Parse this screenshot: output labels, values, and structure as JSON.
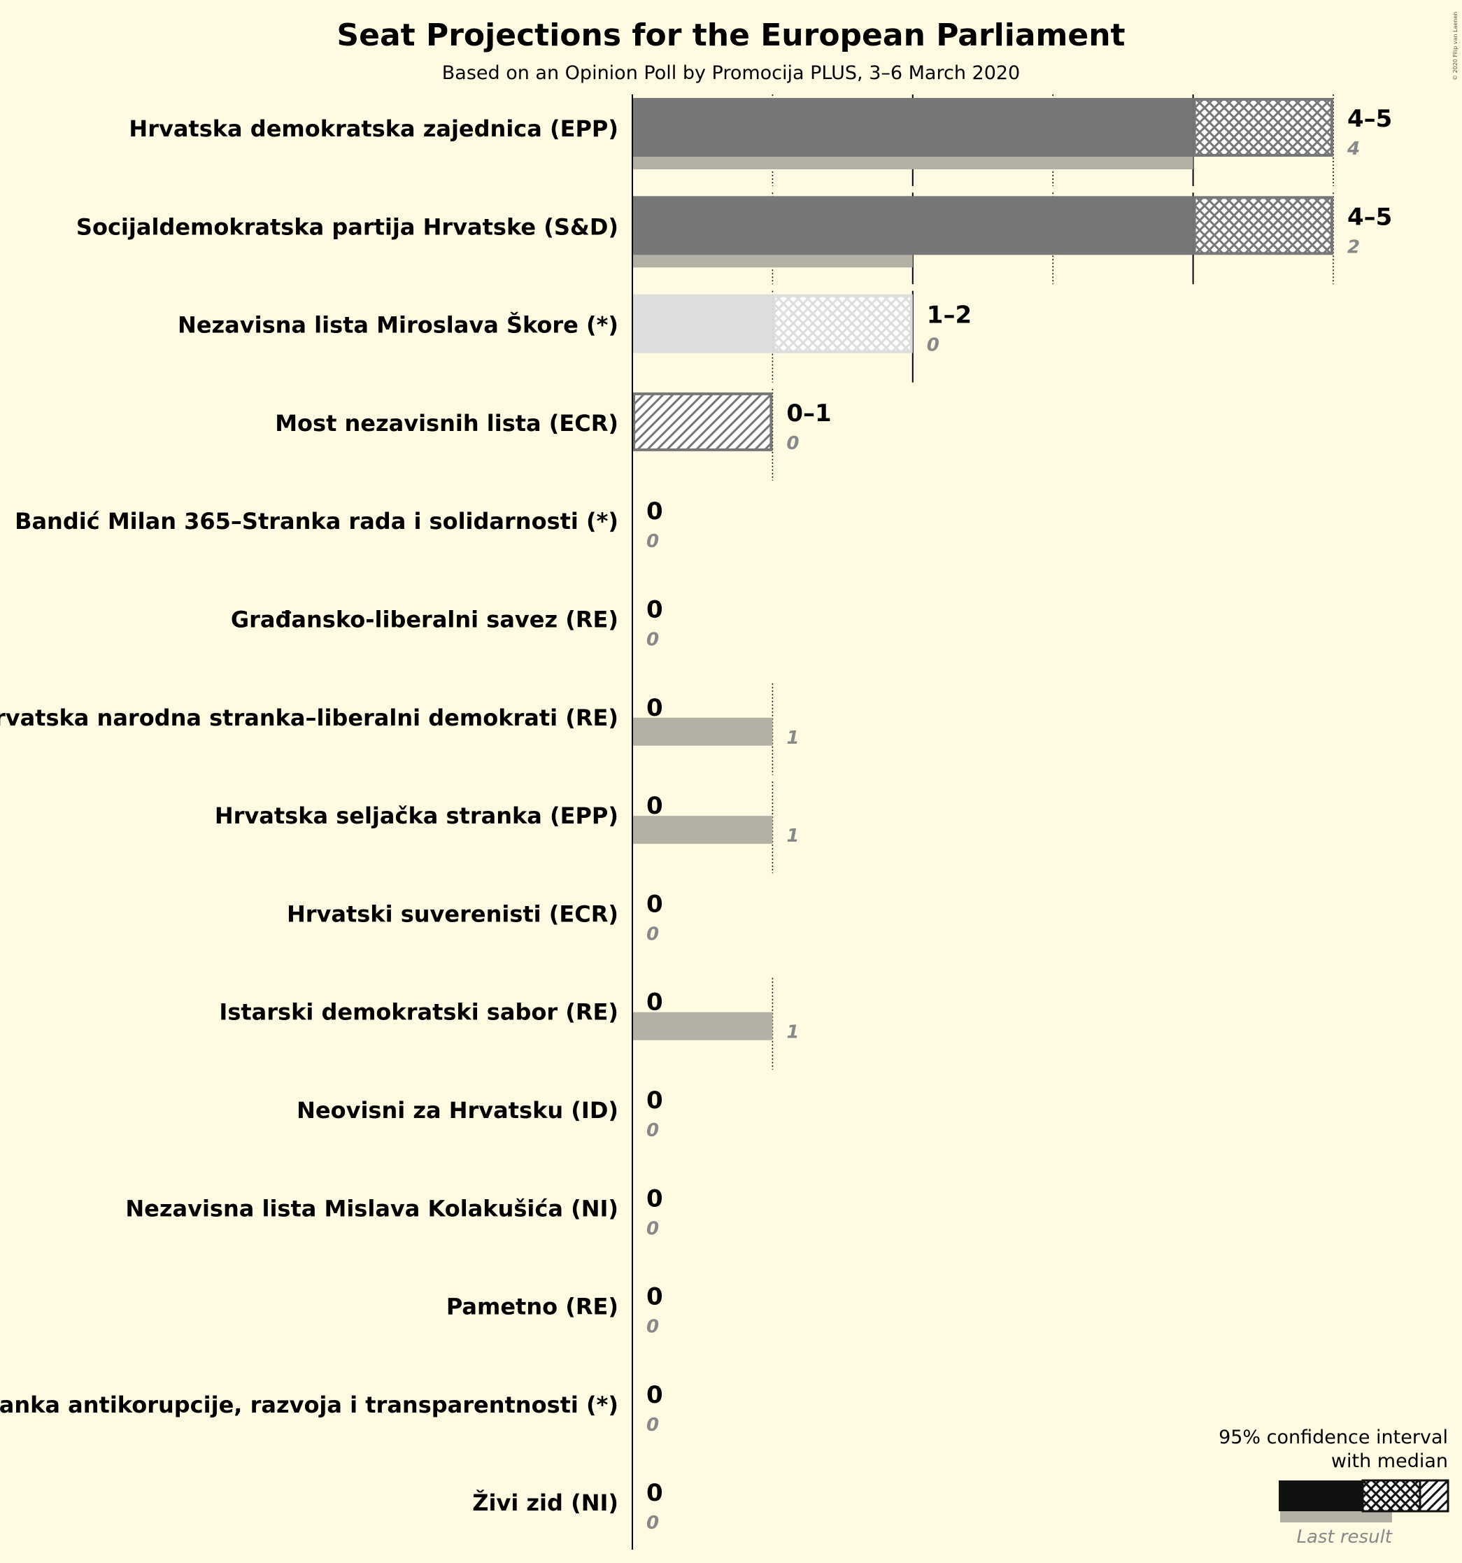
{
  "chart_data": {
    "type": "bar",
    "title": "Seat Projections for the European Parliament",
    "subtitle": "Based on an Opinion Poll by Promocija PLUS, 3–6 March 2020",
    "credit": "© 2020 Filip van Laenen",
    "xlim": [
      0,
      5
    ],
    "gridlines": [
      1,
      2,
      3,
      4,
      5
    ],
    "orientation": "horizontal",
    "categories": [
      "Hrvatska demokratska zajednica (EPP)",
      "Socijaldemokratska partija Hrvatske (S&D)",
      "Nezavisna lista Miroslava Škore (*)",
      "Most nezavisnih lista (ECR)",
      "Bandić Milan 365–Stranka rada i solidarnosti (*)",
      "Građansko-liberalni savez (RE)",
      "Hrvatska narodna stranka–liberalni demokrati (RE)",
      "Hrvatska seljačka stranka (EPP)",
      "Hrvatski suverenisti (ECR)",
      "Istarski demokratski sabor (RE)",
      "Neovisni za Hrvatsku (ID)",
      "Nezavisna lista Mislava Kolakušića (NI)",
      "Pametno (RE)",
      "Stranka antikorupcije, razvoja i transparentnosti (*)",
      "Živi zid (NI)"
    ],
    "series": [
      {
        "name": "95% confidence interval low",
        "values": [
          4,
          4,
          1,
          0,
          0,
          0,
          0,
          0,
          0,
          0,
          0,
          0,
          0,
          0,
          0
        ]
      },
      {
        "name": "Median",
        "values": [
          4,
          4,
          1,
          0,
          0,
          0,
          0,
          0,
          0,
          0,
          0,
          0,
          0,
          0,
          0
        ]
      },
      {
        "name": "95% confidence interval high",
        "values": [
          5,
          5,
          2,
          1,
          0,
          0,
          0,
          0,
          0,
          0,
          0,
          0,
          0,
          0,
          0
        ]
      },
      {
        "name": "Last result",
        "values": [
          4,
          2,
          0,
          0,
          0,
          0,
          1,
          1,
          0,
          1,
          0,
          0,
          0,
          0,
          0
        ]
      }
    ],
    "range_labels": [
      "4–5",
      "4–5",
      "1–2",
      "0–1",
      "0",
      "0",
      "0",
      "0",
      "0",
      "0",
      "0",
      "0",
      "0",
      "0",
      "0"
    ],
    "last_labels": [
      "4",
      "2",
      "0",
      "0",
      "0",
      "0",
      "1",
      "1",
      "0",
      "1",
      "0",
      "0",
      "0",
      "0",
      "0"
    ],
    "legend": {
      "title_line1": "95% confidence interval",
      "title_line2": "with median",
      "last_result": "Last result",
      "placement": "bottom-right"
    },
    "colors": {
      "background": "#fffbe2",
      "solid": "#777777",
      "last": "#b3b0a5",
      "light": "#dddddd",
      "light_hatch": "#ffffff",
      "axis": "#000000",
      "legend_solid": "#111111"
    }
  }
}
